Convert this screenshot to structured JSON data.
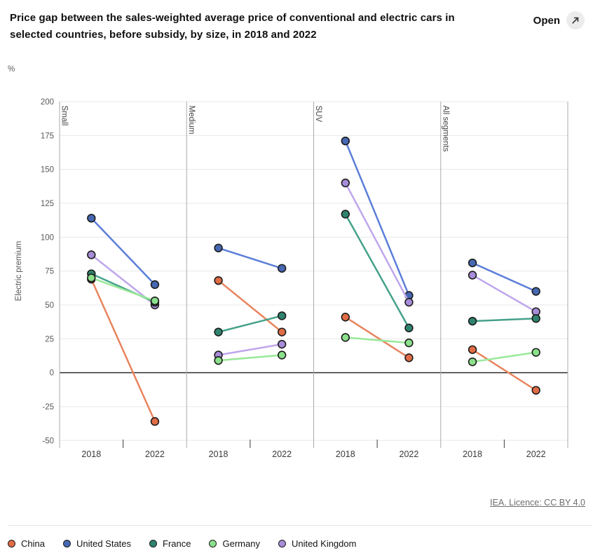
{
  "header": {
    "title_line1": "Price gap between the sales-weighted average price of conventional and electric cars in",
    "title_line2": "selected countries, before subsidy, by size, in 2018 and 2022",
    "open_label": "Open"
  },
  "footer": {
    "license_text": "IEA. Licence: CC BY 4.0"
  },
  "chart_data": {
    "type": "line",
    "title": "Price gap between the sales-weighted average price of conventional and electric cars in selected countries, before subsidy, by size, in 2018 and 2022",
    "unit_label": "%",
    "ylabel": "Electric premium",
    "ylim": [
      -50,
      200
    ],
    "yticks": [
      200,
      175,
      150,
      125,
      100,
      75,
      50,
      25,
      0,
      -25,
      -50
    ],
    "x_categories": [
      "2018",
      "2022"
    ],
    "panels": [
      "Small",
      "Medium",
      "SUV",
      "All segments"
    ],
    "grid": true,
    "legend_position": "bottom",
    "series": [
      {
        "name": "China",
        "point_color": "#E06C45",
        "line_color": "#E8845E",
        "values_by_panel": [
          [
            69,
            -36
          ],
          [
            68,
            30
          ],
          [
            41,
            11
          ],
          [
            17,
            -13
          ]
        ]
      },
      {
        "name": "United States",
        "point_color": "#4668B2",
        "line_color": "#5B7ED9",
        "values_by_panel": [
          [
            114,
            65
          ],
          [
            92,
            77
          ],
          [
            171,
            57
          ],
          [
            81,
            60
          ]
        ]
      },
      {
        "name": "France",
        "point_color": "#30836F",
        "line_color": "#45A18A",
        "values_by_panel": [
          [
            73,
            52
          ],
          [
            30,
            42
          ],
          [
            117,
            33
          ],
          [
            38,
            40
          ]
        ]
      },
      {
        "name": "Germany",
        "point_color": "#8BE08B",
        "line_color": "#99E899",
        "values_by_panel": [
          [
            70,
            53
          ],
          [
            9,
            13
          ],
          [
            26,
            22
          ],
          [
            8,
            15
          ]
        ]
      },
      {
        "name": "United Kingdom",
        "point_color": "#A78CD9",
        "line_color": "#BEA6EC",
        "values_by_panel": [
          [
            87,
            50
          ],
          [
            13,
            21
          ],
          [
            140,
            52
          ],
          [
            72,
            45
          ]
        ]
      }
    ]
  }
}
